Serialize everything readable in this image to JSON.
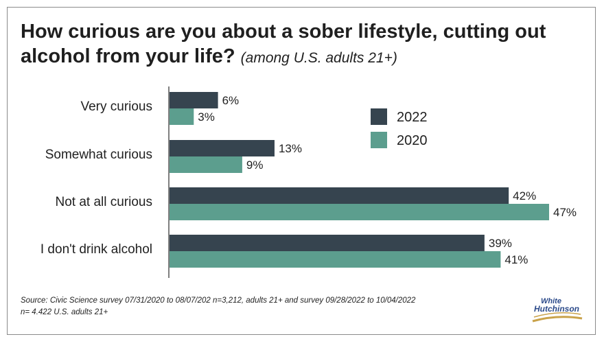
{
  "chart_data": {
    "type": "bar",
    "orientation": "horizontal",
    "title": "How curious are you about a sober lifestyle, cutting out alcohol from your life?",
    "subtitle": "(among U.S. adults 21+)",
    "categories": [
      "Very curious",
      "Somewhat curious",
      "Not at all curious",
      "I don't drink alcohol"
    ],
    "series": [
      {
        "name": "2022",
        "values": [
          6,
          13,
          42,
          39
        ],
        "labels": [
          "6%",
          "13%",
          "42%",
          "39%"
        ],
        "color": "#36444f"
      },
      {
        "name": "2020",
        "values": [
          3,
          9,
          47,
          41
        ],
        "labels": [
          "3%",
          "9%",
          "47%",
          "41%"
        ],
        "color": "#5c9e8e"
      }
    ],
    "unit": "%",
    "xlim": [
      0,
      50
    ],
    "grid": false,
    "legend": "top-right"
  },
  "source": {
    "line1": "Source: Civic Science survey 07/31/2020 to 08/07/202 n=3,212, adults 21+ and survey 09/28/2022 to 10/04/2022",
    "line2": "n= 4.422 U.S. adults 21+"
  },
  "logo": {
    "line1": "White",
    "line2": "Hutchinson"
  }
}
